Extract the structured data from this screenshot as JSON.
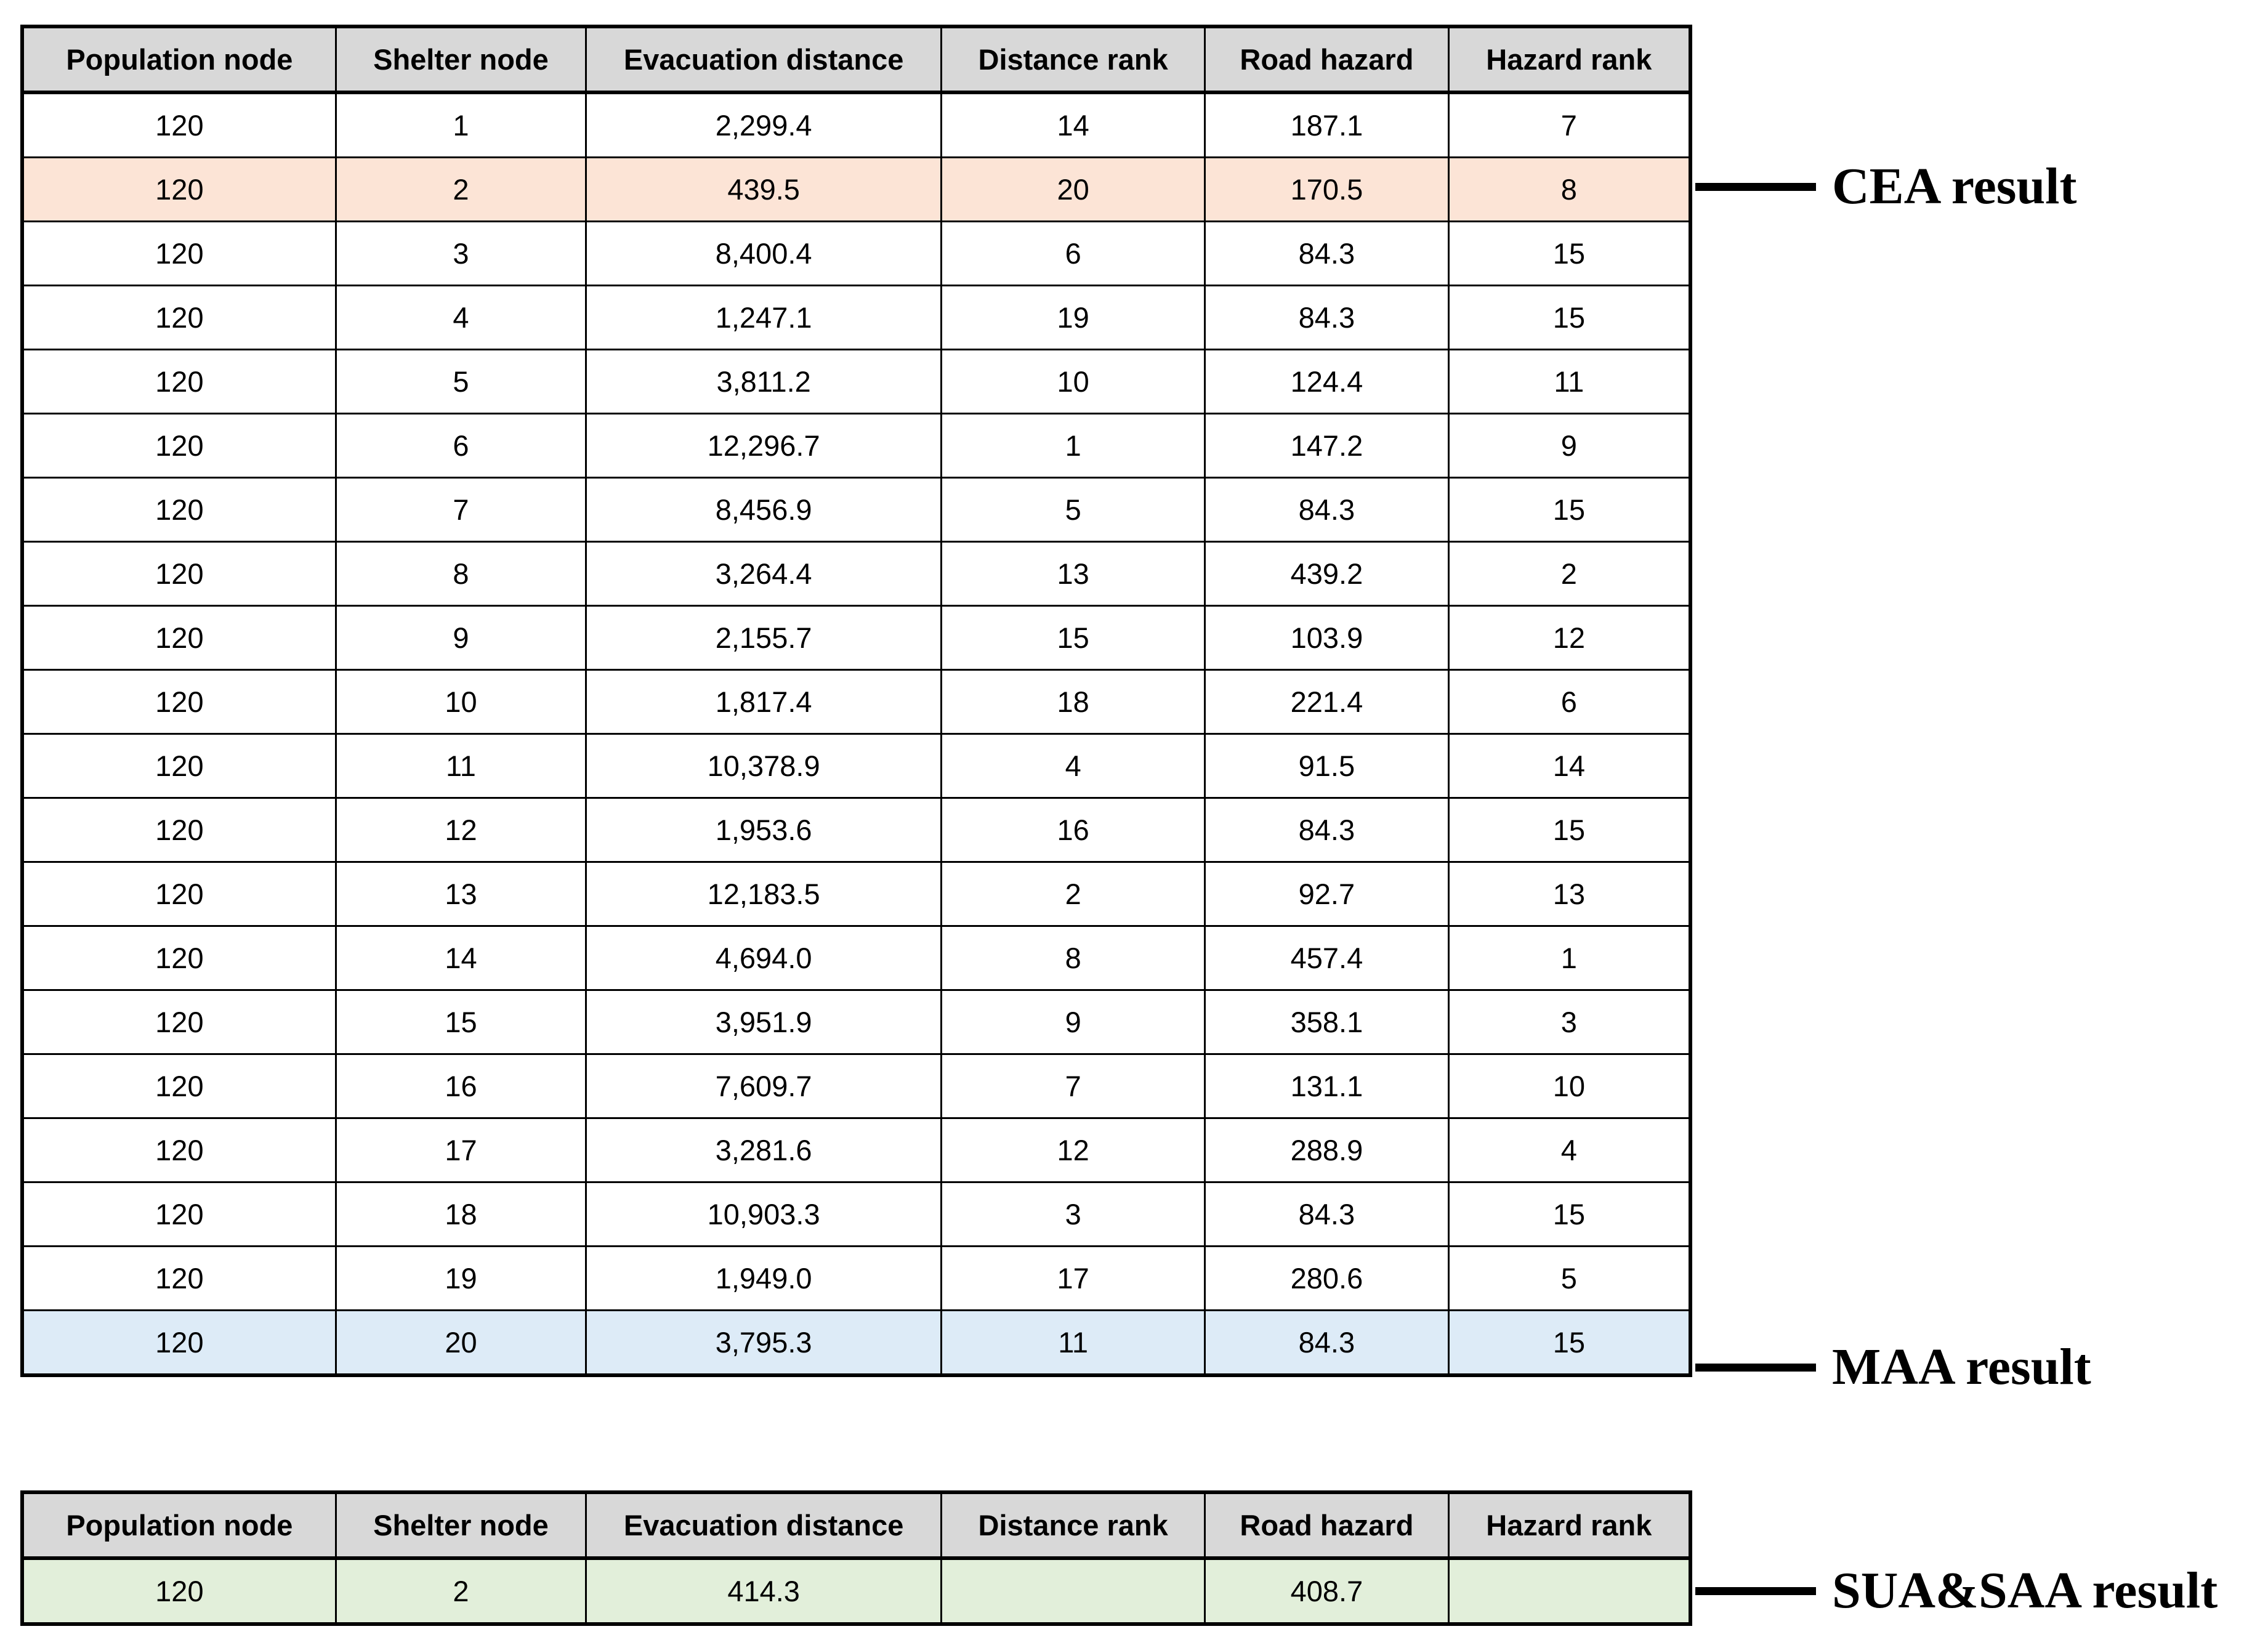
{
  "table1": {
    "headers": [
      "Population node",
      "Shelter node",
      "Evacuation distance",
      "Distance rank",
      "Road hazard",
      "Hazard rank"
    ],
    "rows": [
      [
        "120",
        "1",
        "2,299.4",
        "14",
        "187.1",
        "7"
      ],
      [
        "120",
        "2",
        "439.5",
        "20",
        "170.5",
        "8"
      ],
      [
        "120",
        "3",
        "8,400.4",
        "6",
        "84.3",
        "15"
      ],
      [
        "120",
        "4",
        "1,247.1",
        "19",
        "84.3",
        "15"
      ],
      [
        "120",
        "5",
        "3,811.2",
        "10",
        "124.4",
        "11"
      ],
      [
        "120",
        "6",
        "12,296.7",
        "1",
        "147.2",
        "9"
      ],
      [
        "120",
        "7",
        "8,456.9",
        "5",
        "84.3",
        "15"
      ],
      [
        "120",
        "8",
        "3,264.4",
        "13",
        "439.2",
        "2"
      ],
      [
        "120",
        "9",
        "2,155.7",
        "15",
        "103.9",
        "12"
      ],
      [
        "120",
        "10",
        "1,817.4",
        "18",
        "221.4",
        "6"
      ],
      [
        "120",
        "11",
        "10,378.9",
        "4",
        "91.5",
        "14"
      ],
      [
        "120",
        "12",
        "1,953.6",
        "16",
        "84.3",
        "15"
      ],
      [
        "120",
        "13",
        "12,183.5",
        "2",
        "92.7",
        "13"
      ],
      [
        "120",
        "14",
        "4,694.0",
        "8",
        "457.4",
        "1"
      ],
      [
        "120",
        "15",
        "3,951.9",
        "9",
        "358.1",
        "3"
      ],
      [
        "120",
        "16",
        "7,609.7",
        "7",
        "131.1",
        "10"
      ],
      [
        "120",
        "17",
        "3,281.6",
        "12",
        "288.9",
        "4"
      ],
      [
        "120",
        "18",
        "10,903.3",
        "3",
        "84.3",
        "15"
      ],
      [
        "120",
        "19",
        "1,949.0",
        "17",
        "280.6",
        "5"
      ],
      [
        "120",
        "20",
        "3,795.3",
        "11",
        "84.3",
        "15"
      ]
    ],
    "highlights": {
      "1": "cea",
      "19": "maa"
    }
  },
  "table2": {
    "headers": [
      "Population node",
      "Shelter node",
      "Evacuation distance",
      "Distance rank",
      "Road hazard",
      "Hazard rank"
    ],
    "rows": [
      [
        "120",
        "2",
        "414.3",
        "",
        "408.7",
        ""
      ]
    ],
    "highlights": {
      "0": "sua"
    }
  },
  "annotations": {
    "cea": "CEA result",
    "maa": "MAA result",
    "sua": "SUA&SAA result"
  },
  "colors": {
    "header_bg": "#d8d8d8",
    "cea_bg": "#fce4d6",
    "maa_bg": "#ddebf7",
    "sua_bg": "#e2efda",
    "border": "#000000"
  }
}
